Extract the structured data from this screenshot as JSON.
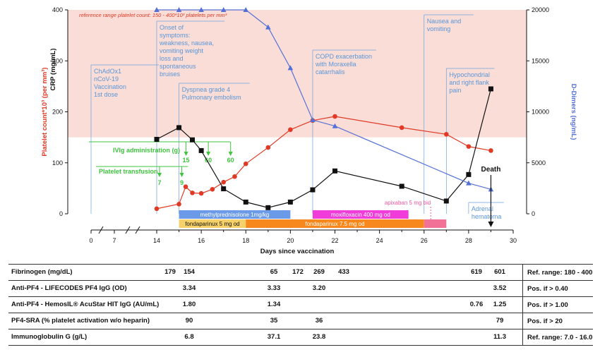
{
  "chart_data": {
    "type": "line",
    "xlabel": "Days since vaccination",
    "y_left_label": "Platelet count*10³ (per mm³)",
    "y_left_label2": "CRP (mg/mL)",
    "y_right_label": "D-Dimers (ng/mL)",
    "x_ticks": [
      0,
      7,
      14,
      16,
      18,
      20,
      22,
      24,
      26,
      28,
      30
    ],
    "y_left_ticks": [
      0,
      100,
      200,
      300,
      400
    ],
    "y_right_ticks": [
      0,
      5000,
      10000,
      15000,
      20000
    ],
    "ylim_left": [
      0,
      400
    ],
    "ylim_right": [
      0,
      20000
    ],
    "reference_band": {
      "label": "reference range platelet count: 150 - 400*10³ platelets per mm³",
      "from": 150,
      "to": 400,
      "color": "#f9ddd6"
    },
    "series": [
      {
        "name": "Platelet count",
        "color": "#e03a26",
        "marker": "circle",
        "x": [
          14,
          15,
          15.3,
          15.6,
          16,
          16.5,
          17,
          17.5,
          18,
          19,
          20,
          21,
          22,
          25,
          27,
          28,
          29
        ],
        "y": [
          10,
          19,
          53,
          41,
          40,
          48,
          62,
          73,
          98,
          130,
          165,
          183,
          191,
          169,
          156,
          132,
          124
        ]
      },
      {
        "name": "CRP",
        "color": "#111111",
        "marker": "square",
        "x": [
          14,
          15,
          15.6,
          16,
          17,
          18,
          19,
          20,
          21,
          22,
          25,
          27,
          28,
          29
        ],
        "y": [
          146,
          169,
          145,
          124,
          49,
          23,
          12,
          23,
          47,
          84,
          54,
          25,
          77,
          245
        ]
      },
      {
        "name": "D-Dimers",
        "color": "#5470d8",
        "marker": "triangle",
        "axis": "right",
        "x": [
          14,
          15,
          16,
          17,
          18,
          19,
          20,
          21,
          22,
          28,
          29
        ],
        "y": [
          20000,
          20000,
          20000,
          20000,
          20000,
          18300,
          14300,
          9200,
          8600,
          3000,
          2400
        ]
      }
    ],
    "events": [
      {
        "x": 0,
        "text": [
          "ChAdOx1",
          "nCoV-19",
          "Vaccination",
          "1st dose"
        ]
      },
      {
        "x": 14,
        "text": [
          "Onset of",
          "symptoms:",
          "weakness, nausea,",
          "vomiting weight",
          "loss and",
          "spontaneous",
          "bruises"
        ]
      },
      {
        "x": 15,
        "text": [
          "Dyspnea grade 4",
          "Pulmonary embolism"
        ]
      },
      {
        "x": 21,
        "text": [
          "COPD exacerbation",
          "with Moraxella",
          "catarrhalis"
        ]
      },
      {
        "x": 26,
        "text": [
          "Nausea and",
          "vomiting"
        ]
      },
      {
        "x": 27,
        "text": [
          "Hypochondrial",
          "and right flank",
          "pain"
        ]
      },
      {
        "x": 28,
        "text": [
          "Adrenal",
          "hematoma"
        ]
      }
    ],
    "death": {
      "x": 29,
      "label": "Death"
    },
    "ivig": {
      "label": "IVIg administration (g)",
      "doses": [
        {
          "x": 15,
          "value": "15"
        },
        {
          "x": 16,
          "value": "60"
        },
        {
          "x": 17,
          "value": "60"
        }
      ]
    },
    "platelet_transfusion": {
      "label": "Platelet transfusion",
      "doses": [
        {
          "x": 14,
          "value": "7"
        },
        {
          "x": 15,
          "value": "9"
        }
      ]
    },
    "treatments": [
      {
        "label": "methylprednisolone 1mg/kg",
        "from": 15,
        "to": 20,
        "color": "#6b9be8"
      },
      {
        "label": "moxifloxacin 400 mg od",
        "from": 21,
        "to": 25.3,
        "color": "#f03cd8"
      },
      {
        "label": "apixaban 5 mg bid",
        "at": 26.3,
        "color": "#ee5a9e"
      },
      {
        "label": "fondaparinux 5 mg od",
        "from": 15,
        "to": 18,
        "color": "#f6d16a"
      },
      {
        "label": "fondaparinux 7.5 mg od",
        "from": 18,
        "to": 26,
        "color": "#f6881e"
      },
      {
        "label": "",
        "from": 26,
        "to": 27,
        "color": "#f27297"
      }
    ]
  },
  "lab_table": {
    "rows": [
      {
        "label": "Fibrinogen (mg/dL)",
        "values": [
          {
            "x": 0,
            "v": "179"
          },
          {
            "x": 1,
            "v": "154"
          },
          {
            "x": 2,
            "v": "65"
          },
          {
            "x": 3,
            "v": "172"
          },
          {
            "x": 4,
            "v": "269"
          },
          {
            "x": 5,
            "v": "433"
          },
          {
            "x": 6,
            "v": "619"
          },
          {
            "x": 7,
            "v": "601"
          }
        ],
        "ref": "Ref. range: 180 - 400"
      },
      {
        "label": "Anti-PF4 - LIFECODES PF4 IgG (OD)",
        "values": [
          {
            "x": 1,
            "v": "3.34"
          },
          {
            "x": 2,
            "v": "3.33"
          },
          {
            "x": 4,
            "v": "3.20"
          },
          {
            "x": 7,
            "v": "3.52"
          }
        ],
        "ref": "Pos. if > 0.40"
      },
      {
        "label": "Anti-PF4 - HemosIL® AcuStar HIT IgG (AU/mL)",
        "values": [
          {
            "x": 1,
            "v": "1.80"
          },
          {
            "x": 2,
            "v": "1.34"
          },
          {
            "x": 6,
            "v": "0.76"
          },
          {
            "x": 7,
            "v": "1.25"
          }
        ],
        "ref": "Pos. if > 1.00"
      },
      {
        "label": "PF4-SRA (% platelet activation w/o heparin)",
        "values": [
          {
            "x": 1,
            "v": "90"
          },
          {
            "x": 2,
            "v": "35"
          },
          {
            "x": 4,
            "v": "36"
          },
          {
            "x": 7,
            "v": "79"
          }
        ],
        "ref": "Pos. if > 20"
      },
      {
        "label": "Immunoglobulin G (g/L)",
        "values": [
          {
            "x": 1,
            "v": "6.8"
          },
          {
            "x": 2,
            "v": "37.1"
          },
          {
            "x": 4,
            "v": "23.8"
          },
          {
            "x": 7,
            "v": "11.3"
          }
        ],
        "ref": "Ref. range: 7.0 - 16.0"
      }
    ]
  }
}
